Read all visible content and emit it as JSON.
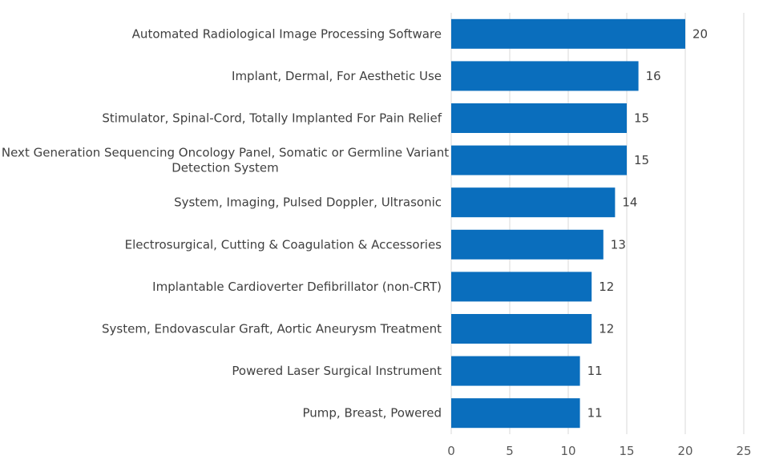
{
  "chart_data": {
    "type": "bar",
    "orientation": "horizontal",
    "title": "",
    "xlabel": "",
    "ylabel": "",
    "categories": [
      [
        "Automated Radiological Image Processing Software"
      ],
      [
        "Implant, Dermal, For Aesthetic Use"
      ],
      [
        "Stimulator, Spinal-Cord, Totally Implanted For Pain Relief"
      ],
      [
        "Next Generation Sequencing Oncology Panel, Somatic or Germline Variant",
        "Detection System"
      ],
      [
        "System, Imaging, Pulsed Doppler, Ultrasonic"
      ],
      [
        "Electrosurgical, Cutting & Coagulation & Accessories"
      ],
      [
        "Implantable Cardioverter Defibrillator (non-CRT)"
      ],
      [
        "System, Endovascular Graft, Aortic Aneurysm Treatment"
      ],
      [
        "Powered Laser Surgical Instrument"
      ],
      [
        "Pump, Breast, Powered"
      ]
    ],
    "values": [
      20,
      16,
      15,
      15,
      14,
      13,
      12,
      12,
      11,
      11
    ],
    "xlim": [
      0,
      25
    ],
    "xticks": [
      0,
      5,
      10,
      15,
      20,
      25
    ],
    "grid": true,
    "legend": "none",
    "bar_color": "#0a6ebd"
  }
}
